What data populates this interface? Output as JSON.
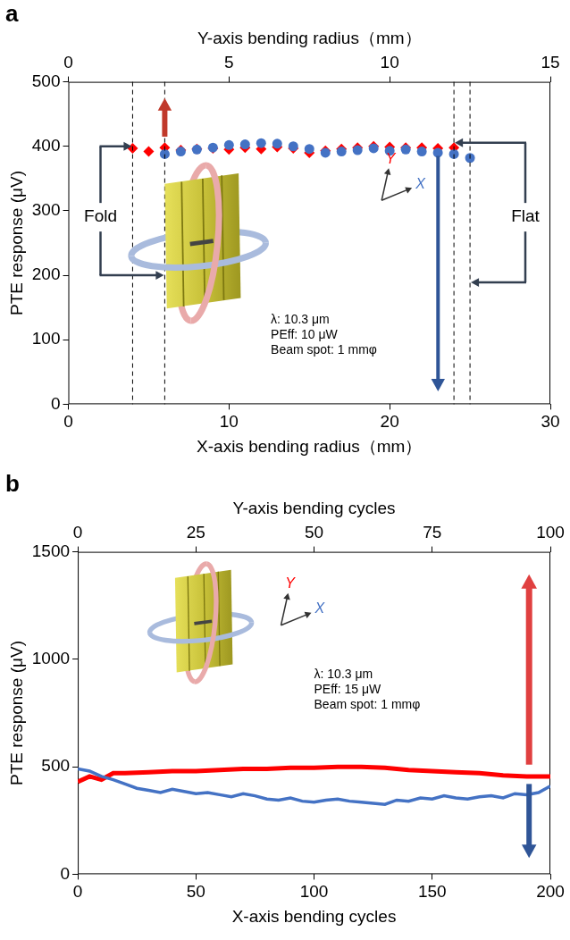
{
  "chart_data": [
    {
      "type": "scatter",
      "panel_label": "a",
      "x_label": "X-axis bending radius（mm）",
      "x2_label": "Y-axis bending radius（mm）",
      "y_label": "PTE response (μV)",
      "xlim": [
        0,
        30
      ],
      "xticks": [
        0,
        10,
        20,
        30
      ],
      "x2lim": [
        0,
        15
      ],
      "x2ticks": [
        0,
        5,
        10,
        15
      ],
      "ylim": [
        0,
        500
      ],
      "yticks": [
        0,
        100,
        200,
        300,
        400,
        500
      ],
      "grid": false,
      "series": [
        {
          "color": "#4472c4",
          "marker": "circle",
          "x": [
            6,
            7,
            8,
            9,
            10,
            11,
            12,
            13,
            14,
            15,
            16,
            17,
            18,
            19,
            20,
            21,
            22,
            23,
            24,
            25
          ],
          "values": [
            388,
            392,
            395,
            398,
            402,
            403,
            405,
            404,
            400,
            396,
            390,
            392,
            394,
            397,
            393,
            395,
            392,
            390,
            388,
            382
          ]
        },
        {
          "color": "#ff0000",
          "marker": "diamond",
          "axis": "x2",
          "x": [
            2,
            2.5,
            3,
            3.5,
            4,
            4.5,
            5,
            5.5,
            6,
            6.5,
            7,
            7.5,
            8,
            8.5,
            9,
            9.5,
            10,
            10.5,
            11,
            11.5,
            12
          ],
          "values": [
            397,
            392,
            398,
            394,
            396,
            397,
            395,
            398,
            396,
            399,
            397,
            390,
            393,
            396,
            398,
            400,
            399,
            398,
            398,
            397,
            398
          ]
        }
      ],
      "annotations": {
        "fold": "Fold",
        "flat": "Flat",
        "conditions": [
          "λ: 10.3 μm",
          "PEff: 10 μW",
          "Beam spot: 1 mmφ"
        ],
        "axis_icon": {
          "x": "X",
          "y": "Y"
        }
      }
    },
    {
      "type": "line",
      "panel_label": "b",
      "x_label": "X-axis bending cycles",
      "x2_label": "Y-axis bending cycles",
      "y_label": "PTE response (μV)",
      "xlim": [
        0,
        200
      ],
      "xticks": [
        0,
        50,
        100,
        150,
        200
      ],
      "x2lim": [
        0,
        100
      ],
      "x2ticks": [
        0,
        25,
        50,
        75,
        100
      ],
      "ylim": [
        0,
        1500
      ],
      "yticks": [
        0,
        500,
        1000,
        1500
      ],
      "grid": false,
      "series": [
        {
          "color": "#4472c4",
          "marker": "none",
          "line_style": "solid",
          "x": [
            0,
            5,
            10,
            15,
            20,
            25,
            30,
            35,
            40,
            45,
            50,
            55,
            60,
            65,
            70,
            75,
            80,
            85,
            90,
            95,
            100,
            105,
            110,
            115,
            120,
            125,
            130,
            135,
            140,
            145,
            150,
            155,
            160,
            165,
            170,
            175,
            180,
            185,
            190,
            195,
            200
          ],
          "values": [
            490,
            480,
            455,
            440,
            420,
            400,
            390,
            380,
            395,
            385,
            375,
            380,
            370,
            360,
            375,
            365,
            350,
            345,
            355,
            340,
            335,
            345,
            350,
            340,
            335,
            330,
            325,
            345,
            340,
            355,
            350,
            365,
            355,
            350,
            360,
            365,
            355,
            375,
            370,
            380,
            410
          ]
        },
        {
          "color": "#ff0000",
          "marker": "none",
          "line_style": "double",
          "axis": "x2",
          "x": [
            0,
            2.5,
            5,
            7.5,
            10,
            15,
            20,
            25,
            30,
            35,
            40,
            45,
            50,
            55,
            60,
            65,
            70,
            75,
            80,
            85,
            90,
            95,
            100
          ],
          "values": [
            430,
            455,
            440,
            470,
            470,
            475,
            480,
            480,
            485,
            490,
            490,
            495,
            495,
            500,
            500,
            495,
            485,
            480,
            475,
            470,
            460,
            455,
            455
          ]
        }
      ],
      "annotations": {
        "conditions": [
          "λ: 10.3 μm",
          "PEff: 15 μW",
          "Beam spot: 1 mmφ"
        ],
        "axis_icon": {
          "x": "X",
          "y": "Y"
        }
      }
    }
  ]
}
